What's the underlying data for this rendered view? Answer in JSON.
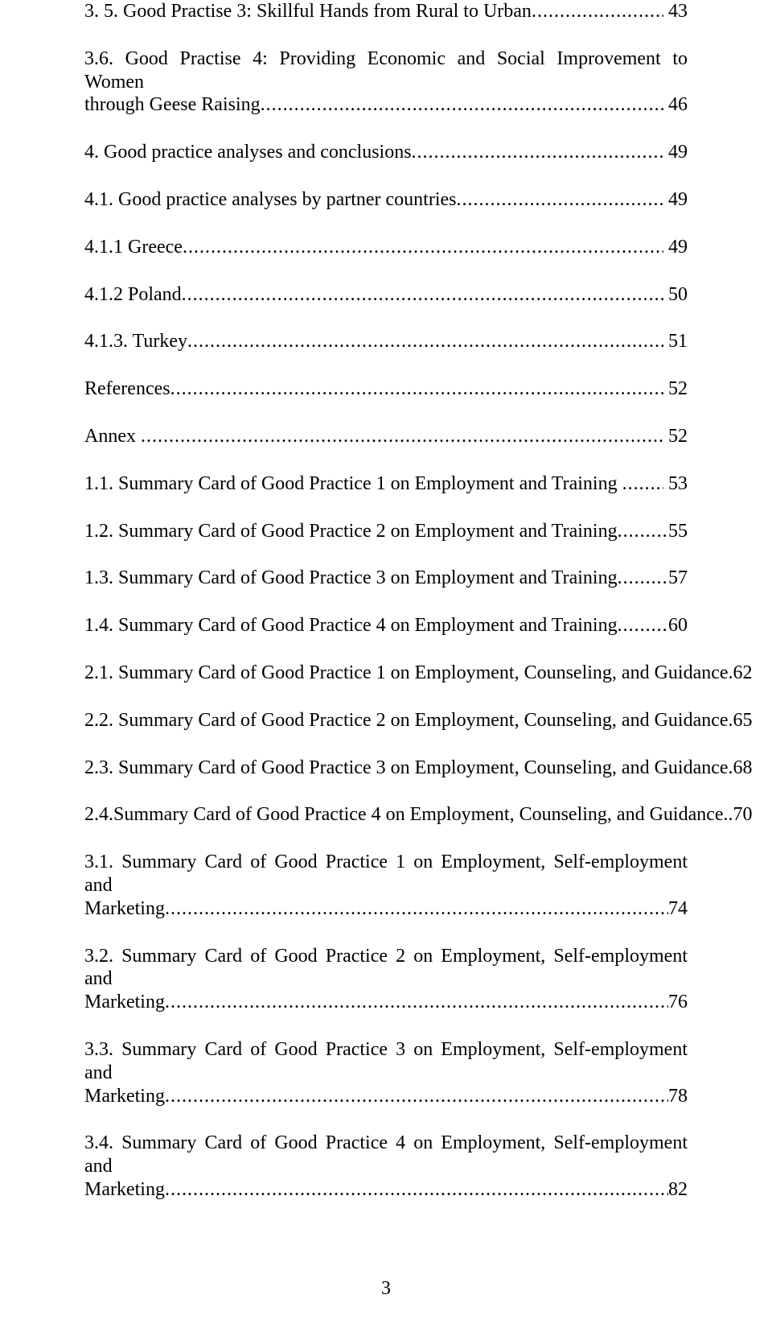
{
  "page_number": "3",
  "font": {
    "family": "Times New Roman",
    "title_size_pt": 12
  },
  "entries": [
    {
      "lines": [
        "3. 5. Good Practise 3: Skillful Hands from Rural to Urban"
      ],
      "page": " 43",
      "dot_char": "."
    },
    {
      "lines": [
        "3.6. Good Practise 4: Providing Economic and Social Improvement to Women",
        "through Geese Raising"
      ],
      "page": " 46",
      "dot_char": "."
    },
    {
      "lines": [
        "4. Good practice analyses and conclusions"
      ],
      "page": " 49",
      "dot_char": "."
    },
    {
      "lines": [
        "4.1. Good practice analyses by partner countries"
      ],
      "page": " 49",
      "dot_char": "."
    },
    {
      "lines": [
        "4.1.1 Greece"
      ],
      "page": " 49",
      "dot_char": "."
    },
    {
      "lines": [
        "4.1.2 Poland"
      ],
      "page": " 50",
      "dot_char": "."
    },
    {
      "lines": [
        "4.1.3. Turkey"
      ],
      "page": " 51",
      "dot_char": "."
    },
    {
      "lines": [
        "References"
      ],
      "page": " 52",
      "dot_char": "."
    },
    {
      "lines": [
        "Annex "
      ],
      "page": " 52",
      "dot_char": "."
    },
    {
      "lines": [
        "1.1. Summary Card of Good Practice 1 on Employment and Training "
      ],
      "page": " 53",
      "dot_char": "."
    },
    {
      "lines": [
        "1.2. Summary Card of Good Practice 2 on Employment and Training"
      ],
      "page": "55",
      "dot_char": "."
    },
    {
      "lines": [
        "1.3. Summary Card of Good Practice 3 on Employment and Training"
      ],
      "page": "57",
      "dot_char": "."
    },
    {
      "lines": [
        "1.4. Summary Card of Good Practice 4 on Employment and Training"
      ],
      "page": "60",
      "dot_char": "."
    },
    {
      "lines": [
        "2.1. Summary Card of Good Practice 1 on Employment, Counseling, and Guidance"
      ],
      "page": ".62",
      "dot_char": "",
      "no_leader": true
    },
    {
      "lines": [
        "2.2. Summary Card of Good Practice 2 on Employment, Counseling, and Guidance"
      ],
      "page": ".65",
      "dot_char": "",
      "no_leader": true
    },
    {
      "lines": [
        "2.3. Summary Card of Good Practice 3 on Employment, Counseling, and Guidance"
      ],
      "page": ".68",
      "dot_char": "",
      "no_leader": true
    },
    {
      "lines": [
        "2.4.Summary Card of Good Practice 4 on Employment, Counseling, and Guidance"
      ],
      "page": "..70",
      "dot_char": "",
      "no_leader": true
    },
    {
      "lines": [
        "3.1. Summary Card of Good Practice 1 on Employment, Self-employment and",
        "Marketing"
      ],
      "page": "74",
      "dot_char": "."
    },
    {
      "lines": [
        "3.2. Summary Card of Good Practice 2 on Employment, Self-employment and",
        "Marketing"
      ],
      "page": "76",
      "dot_char": "."
    },
    {
      "lines": [
        "3.3. Summary Card of Good Practice 3 on Employment, Self-employment and",
        "Marketing"
      ],
      "page": "78",
      "dot_char": "."
    },
    {
      "lines": [
        "3.4. Summary Card of Good Practice 4 on Employment, Self-employment and",
        "Marketing"
      ],
      "page": "82",
      "dot_char": "."
    }
  ]
}
